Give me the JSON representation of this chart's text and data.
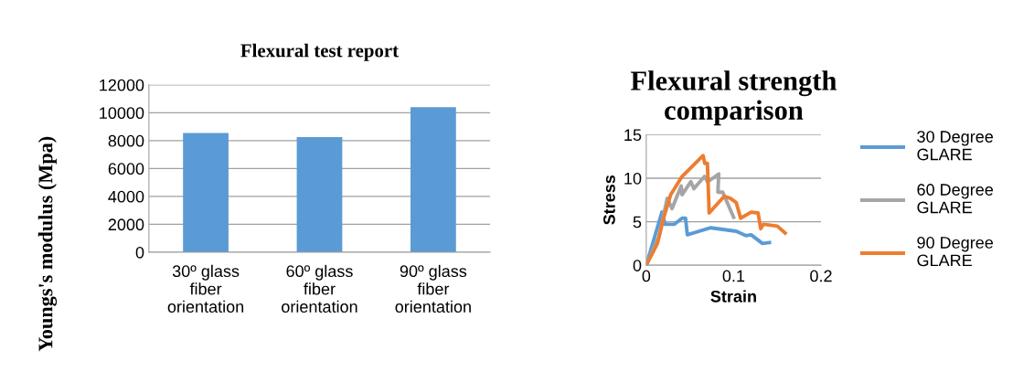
{
  "chart_data": [
    {
      "type": "bar",
      "title": "Flexural test report",
      "ylabel": "Youngs's modulus (Mpa)",
      "categories": [
        "30º glass\nfiber\norientation",
        "60º glass\nfiber\norientation",
        "90º glass\nfiber\norientation"
      ],
      "values": [
        8550,
        8250,
        10400
      ],
      "color": "#5b9bd5",
      "ylim": [
        0,
        12000
      ],
      "yticks": [
        0,
        2000,
        4000,
        6000,
        8000,
        10000,
        12000
      ],
      "grid": "y"
    },
    {
      "type": "line",
      "title": "Flexural strength\ncomparison",
      "xlabel": "Strain",
      "ylabel": "Stress",
      "xlim": [
        0,
        0.2
      ],
      "xticks": [
        0,
        0.1,
        0.2
      ],
      "ylim": [
        0,
        15
      ],
      "yticks": [
        0,
        5,
        10,
        15
      ],
      "grid": "y",
      "legend": "right",
      "marker": "none",
      "line_style": "solid",
      "series": [
        {
          "name": "30 Degree\nGLARE",
          "color": "#5b9bd5",
          "x": [
            0,
            0.018,
            0.0215,
            0.032,
            0.041,
            0.045,
            0.047,
            0.074,
            0.103,
            0.114,
            0.12,
            0.133,
            0.141
          ],
          "values": [
            0,
            6.1,
            4.7,
            4.7,
            5.4,
            5.4,
            3.5,
            4.3,
            3.9,
            3.4,
            3.5,
            2.5,
            2.6
          ]
        },
        {
          "name": "60 Degree\nGLARE",
          "color": "#a5a5a5",
          "x": [
            0,
            0.0146,
            0.024,
            0.0295,
            0.04,
            0.041,
            0.051,
            0.0545,
            0.0667,
            0.07,
            0.079,
            0.083,
            0.082,
            0.0875,
            0.1
          ],
          "values": [
            0,
            3.3,
            7.7,
            6.5,
            9.1,
            8.1,
            9.6,
            8.8,
            10.2,
            9.6,
            10.2,
            10.5,
            8.4,
            8.4,
            5.5
          ]
        },
        {
          "name": "90 Degree\nGLARE",
          "color": "#ed7d31",
          "x": [
            0,
            0.0128,
            0.0198,
            0.028,
            0.041,
            0.065,
            0.067,
            0.07,
            0.072,
            0.089,
            0.096,
            0.103,
            0.108,
            0.12,
            0.128,
            0.131,
            0.134,
            0.15,
            0.159
          ],
          "values": [
            0,
            2.5,
            5.4,
            8.1,
            10.2,
            12.6,
            11.7,
            11.7,
            6.0,
            7.9,
            7.7,
            7.2,
            5.4,
            6.1,
            6.0,
            4.2,
            4.7,
            4.5,
            3.7
          ]
        }
      ]
    }
  ]
}
